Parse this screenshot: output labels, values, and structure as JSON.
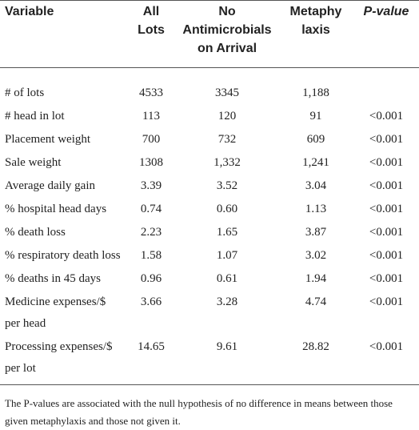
{
  "table": {
    "header": [
      [
        "Variable"
      ],
      [
        "All",
        "Lots"
      ],
      [
        "No",
        "Antimicrobials",
        "on Arrival"
      ],
      [
        "Metaphy",
        "laxis"
      ],
      [
        "P-value"
      ]
    ],
    "rows": [
      [
        [
          "# of lots"
        ],
        "4533",
        "3345",
        "1,188",
        ""
      ],
      [
        [
          "# head in lot"
        ],
        "113",
        "120",
        "91",
        "<0.001"
      ],
      [
        [
          "Placement weight"
        ],
        "700",
        "732",
        "609",
        "<0.001"
      ],
      [
        [
          "Sale weight"
        ],
        "1308",
        "1,332",
        "1,241",
        "<0.001"
      ],
      [
        [
          "Average daily gain"
        ],
        "3.39",
        "3.52",
        "3.04",
        "<0.001"
      ],
      [
        [
          "% hospital head days"
        ],
        "0.74",
        "0.60",
        "1.13",
        "<0.001"
      ],
      [
        [
          "% death loss"
        ],
        "2.23",
        "1.65",
        "3.87",
        "<0.001"
      ],
      [
        [
          "% respiratory death loss"
        ],
        "1.58",
        "1.07",
        "3.02",
        "<0.001"
      ],
      [
        [
          "% deaths in 45 days"
        ],
        "0.96",
        "0.61",
        "1.94",
        "<0.001"
      ],
      [
        [
          "Medicine expenses/$",
          "per head"
        ],
        "3.66",
        "3.28",
        "4.74",
        "<0.001"
      ],
      [
        [
          "Processing expenses/$",
          "per lot"
        ],
        "14.65",
        "9.61",
        "28.82",
        "<0.001"
      ]
    ],
    "footnote": "The P-values are associated with the null hypothesis of no difference in means between those given metaphylaxis and those not given it."
  }
}
